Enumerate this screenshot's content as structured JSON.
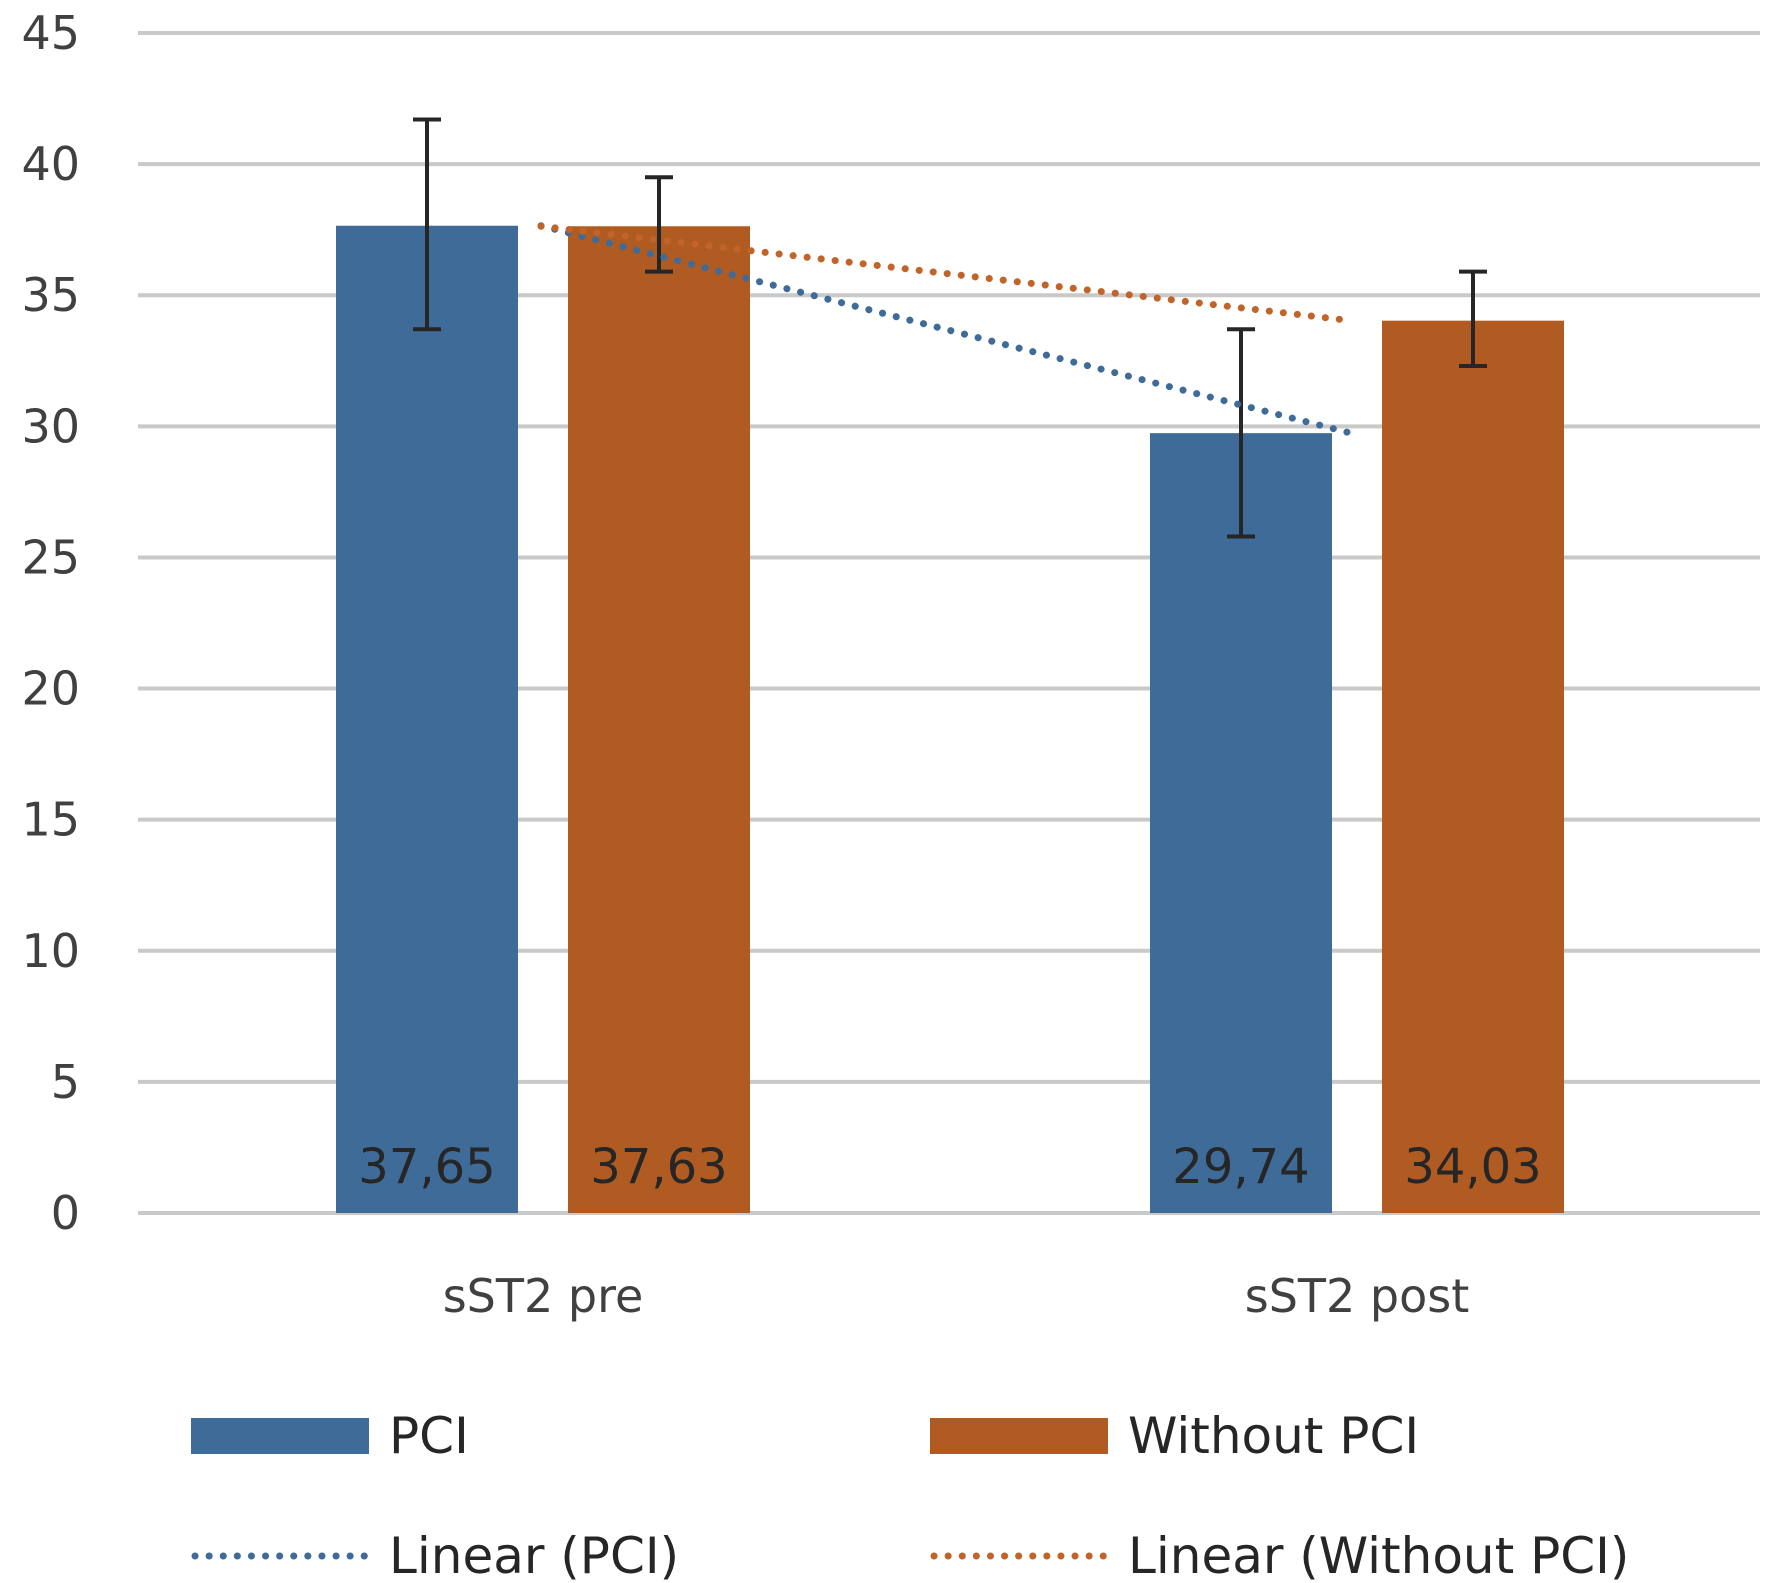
{
  "chart_data": {
    "type": "bar",
    "categories": [
      "sST2 pre",
      "sST2 post"
    ],
    "series": [
      {
        "name": "PCI",
        "color": "#3f6b98",
        "values": [
          37.65,
          29.74
        ],
        "value_labels": [
          "37,65",
          "29,74"
        ],
        "error_low": [
          33.7,
          25.8
        ],
        "error_high": [
          41.7,
          33.7
        ]
      },
      {
        "name": "Without PCI",
        "color": "#b05b22",
        "values": [
          37.63,
          34.03
        ],
        "value_labels": [
          "37,63",
          "34,03"
        ],
        "error_low": [
          35.9,
          32.3
        ],
        "error_high": [
          39.5,
          35.9
        ]
      }
    ],
    "trendlines": [
      {
        "name": "Linear (PCI)",
        "color": "#3f6b98",
        "style": "dotted",
        "values": [
          37.65,
          29.74
        ]
      },
      {
        "name": "Linear (Without PCI)",
        "color": "#c0642a",
        "style": "dotted",
        "values": [
          37.63,
          34.03
        ]
      }
    ],
    "ylim": [
      0,
      45
    ],
    "yticks": [
      0,
      5,
      10,
      15,
      20,
      25,
      30,
      35,
      40,
      45
    ],
    "grid": true,
    "legend_position": "bottom",
    "title": "",
    "xlabel": "",
    "ylabel": ""
  }
}
